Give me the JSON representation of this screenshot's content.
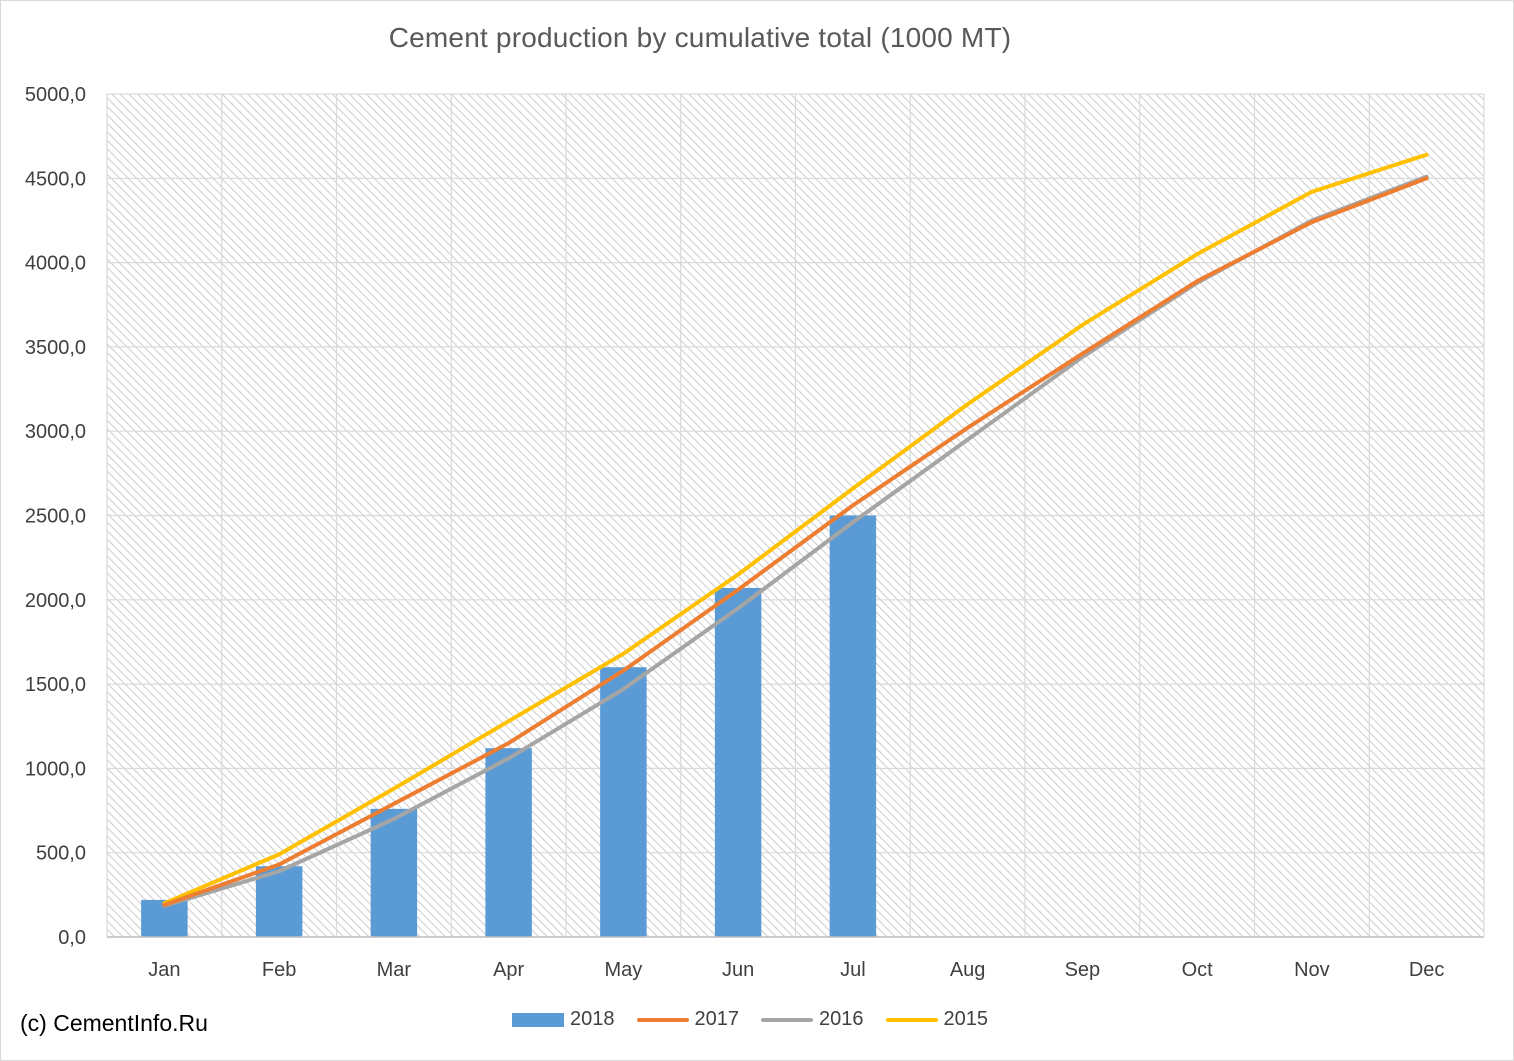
{
  "chart_data": {
    "type": "bar",
    "title": "Cement production by cumulative total (1000 MT)",
    "categories": [
      "Jan",
      "Feb",
      "Mar",
      "Apr",
      "May",
      "Jun",
      "Jul",
      "Aug",
      "Sep",
      "Oct",
      "Nov",
      "Dec"
    ],
    "y_ticks": [
      "0,0",
      "500,0",
      "1000,0",
      "1500,0",
      "2000,0",
      "2500,0",
      "3000,0",
      "3500,0",
      "4000,0",
      "4500,0",
      "5000,0"
    ],
    "ylim": [
      0,
      5000
    ],
    "grid": true,
    "legend_position": "bottom",
    "series": [
      {
        "name": "2018",
        "kind": "bar",
        "color": "#5b9bd5",
        "values": [
          220,
          420,
          760,
          1120,
          1600,
          2070,
          2500,
          null,
          null,
          null,
          null,
          null
        ]
      },
      {
        "name": "2017",
        "kind": "line",
        "color": "#ed7d31",
        "values": [
          190,
          430,
          790,
          1150,
          1580,
          2060,
          2560,
          3020,
          3460,
          3890,
          4240,
          4500
        ]
      },
      {
        "name": "2016",
        "kind": "line",
        "color": "#a5a5a5",
        "values": [
          185,
          390,
          700,
          1060,
          1470,
          1950,
          2460,
          2950,
          3440,
          3880,
          4250,
          4510
        ]
      },
      {
        "name": "2015",
        "kind": "line",
        "color": "#ffc000",
        "values": [
          200,
          490,
          880,
          1280,
          1680,
          2150,
          2660,
          3160,
          3630,
          4050,
          4420,
          4640
        ]
      }
    ]
  },
  "footer": {
    "copyright": "(c) CementInfo.Ru"
  }
}
